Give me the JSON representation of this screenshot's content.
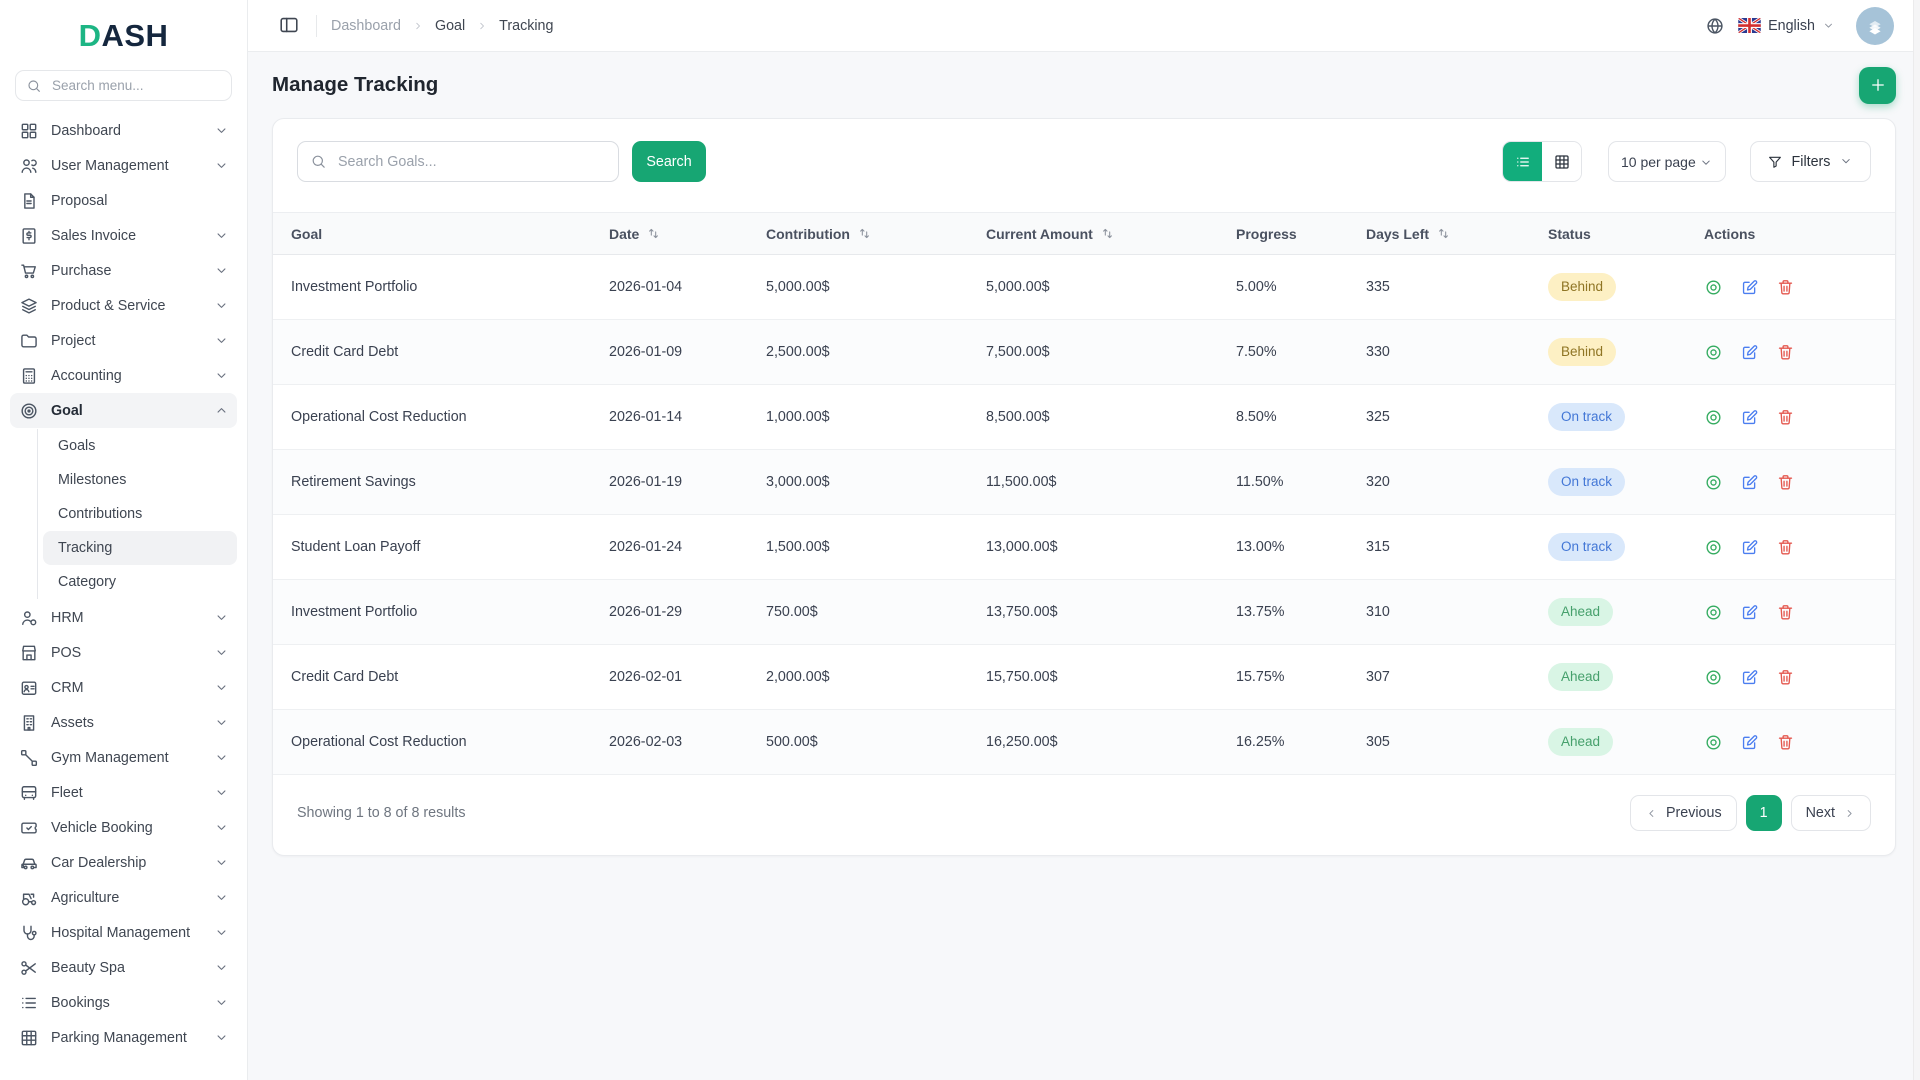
{
  "brand": {
    "accent": "D",
    "rest": "ASH"
  },
  "colors": {
    "accent_green": "#17a673",
    "toggle_active_green": "#12ad7c",
    "avatar_bg": "#a6c3d8"
  },
  "sidebar": {
    "search_placeholder": "Search menu...",
    "items": [
      {
        "label": "Dashboard",
        "icon": "dashboard",
        "chevron": "down"
      },
      {
        "label": "User Management",
        "icon": "users",
        "chevron": "down"
      },
      {
        "label": "Proposal",
        "icon": "proposal",
        "chevron": null
      },
      {
        "label": "Sales Invoice",
        "icon": "invoice",
        "chevron": "down"
      },
      {
        "label": "Purchase",
        "icon": "cart",
        "chevron": "down"
      },
      {
        "label": "Product & Service",
        "icon": "layers",
        "chevron": "down"
      },
      {
        "label": "Project",
        "icon": "folder",
        "chevron": "down"
      },
      {
        "label": "Accounting",
        "icon": "calculator",
        "chevron": "down"
      },
      {
        "label": "Goal",
        "icon": "target",
        "chevron": "up",
        "expanded": true,
        "children": [
          {
            "label": "Goals",
            "active": false
          },
          {
            "label": "Milestones",
            "active": false
          },
          {
            "label": "Contributions",
            "active": false
          },
          {
            "label": "Tracking",
            "active": true
          },
          {
            "label": "Category",
            "active": false
          }
        ]
      },
      {
        "label": "HRM",
        "icon": "hrm",
        "chevron": "down"
      },
      {
        "label": "POS",
        "icon": "store",
        "chevron": "down"
      },
      {
        "label": "CRM",
        "icon": "idcard",
        "chevron": "down"
      },
      {
        "label": "Assets",
        "icon": "building",
        "chevron": "down"
      },
      {
        "label": "Gym Management",
        "icon": "gym",
        "chevron": "down"
      },
      {
        "label": "Fleet",
        "icon": "bus",
        "chevron": "down"
      },
      {
        "label": "Vehicle Booking",
        "icon": "ticket",
        "chevron": "down"
      },
      {
        "label": "Car Dealership",
        "icon": "car",
        "chevron": "down"
      },
      {
        "label": "Agriculture",
        "icon": "tractor",
        "chevron": "down"
      },
      {
        "label": "Hospital Management",
        "icon": "stethoscope",
        "chevron": "down"
      },
      {
        "label": "Beauty Spa",
        "icon": "scissors",
        "chevron": "down"
      },
      {
        "label": "Bookings",
        "icon": "list",
        "chevron": "down"
      },
      {
        "label": "Parking Management",
        "icon": "grid",
        "chevron": "down"
      }
    ]
  },
  "header": {
    "breadcrumb": [
      "Dashboard",
      "Goal",
      "Tracking"
    ],
    "language": "English"
  },
  "page": {
    "title": "Manage Tracking"
  },
  "toolbar": {
    "search_placeholder": "Search Goals...",
    "search_button": "Search",
    "per_page": "10 per page",
    "filters_label": "Filters"
  },
  "table": {
    "columns": [
      {
        "label": "Goal",
        "sortable": false
      },
      {
        "label": "Date",
        "sortable": true
      },
      {
        "label": "Contribution",
        "sortable": true
      },
      {
        "label": "Current Amount",
        "sortable": true
      },
      {
        "label": "Progress",
        "sortable": false
      },
      {
        "label": "Days Left",
        "sortable": true
      },
      {
        "label": "Status",
        "sortable": false
      },
      {
        "label": "Actions",
        "sortable": false
      }
    ],
    "rows": [
      {
        "goal": "Investment Portfolio",
        "date": "2026-01-04",
        "contribution": "5,000.00$",
        "current_amount": "5,000.00$",
        "progress": "5.00%",
        "days_left": "335",
        "status": "Behind"
      },
      {
        "goal": "Credit Card Debt",
        "date": "2026-01-09",
        "contribution": "2,500.00$",
        "current_amount": "7,500.00$",
        "progress": "7.50%",
        "days_left": "330",
        "status": "Behind"
      },
      {
        "goal": "Operational Cost Reduction",
        "date": "2026-01-14",
        "contribution": "1,000.00$",
        "current_amount": "8,500.00$",
        "progress": "8.50%",
        "days_left": "325",
        "status": "On track"
      },
      {
        "goal": "Retirement Savings",
        "date": "2026-01-19",
        "contribution": "3,000.00$",
        "current_amount": "11,500.00$",
        "progress": "11.50%",
        "days_left": "320",
        "status": "On track"
      },
      {
        "goal": "Student Loan Payoff",
        "date": "2026-01-24",
        "contribution": "1,500.00$",
        "current_amount": "13,000.00$",
        "progress": "13.00%",
        "days_left": "315",
        "status": "On track"
      },
      {
        "goal": "Investment Portfolio",
        "date": "2026-01-29",
        "contribution": "750.00$",
        "current_amount": "13,750.00$",
        "progress": "13.75%",
        "days_left": "310",
        "status": "Ahead"
      },
      {
        "goal": "Credit Card Debt",
        "date": "2026-02-01",
        "contribution": "2,000.00$",
        "current_amount": "15,750.00$",
        "progress": "15.75%",
        "days_left": "307",
        "status": "Ahead"
      },
      {
        "goal": "Operational Cost Reduction",
        "date": "2026-02-03",
        "contribution": "500.00$",
        "current_amount": "16,250.00$",
        "progress": "16.25%",
        "days_left": "305",
        "status": "Ahead"
      }
    ]
  },
  "statuses": {
    "Behind": {
      "bg": "#fdf0c4",
      "text": "#8f7524"
    },
    "On track": {
      "bg": "#d9e8fb",
      "text": "#4377d6"
    },
    "Ahead": {
      "bg": "#d9f5e5",
      "text": "#46a06c"
    }
  },
  "pagination": {
    "summary": "Showing 1 to 8 of 8 results",
    "previous": "Previous",
    "page": "1",
    "next": "Next"
  }
}
